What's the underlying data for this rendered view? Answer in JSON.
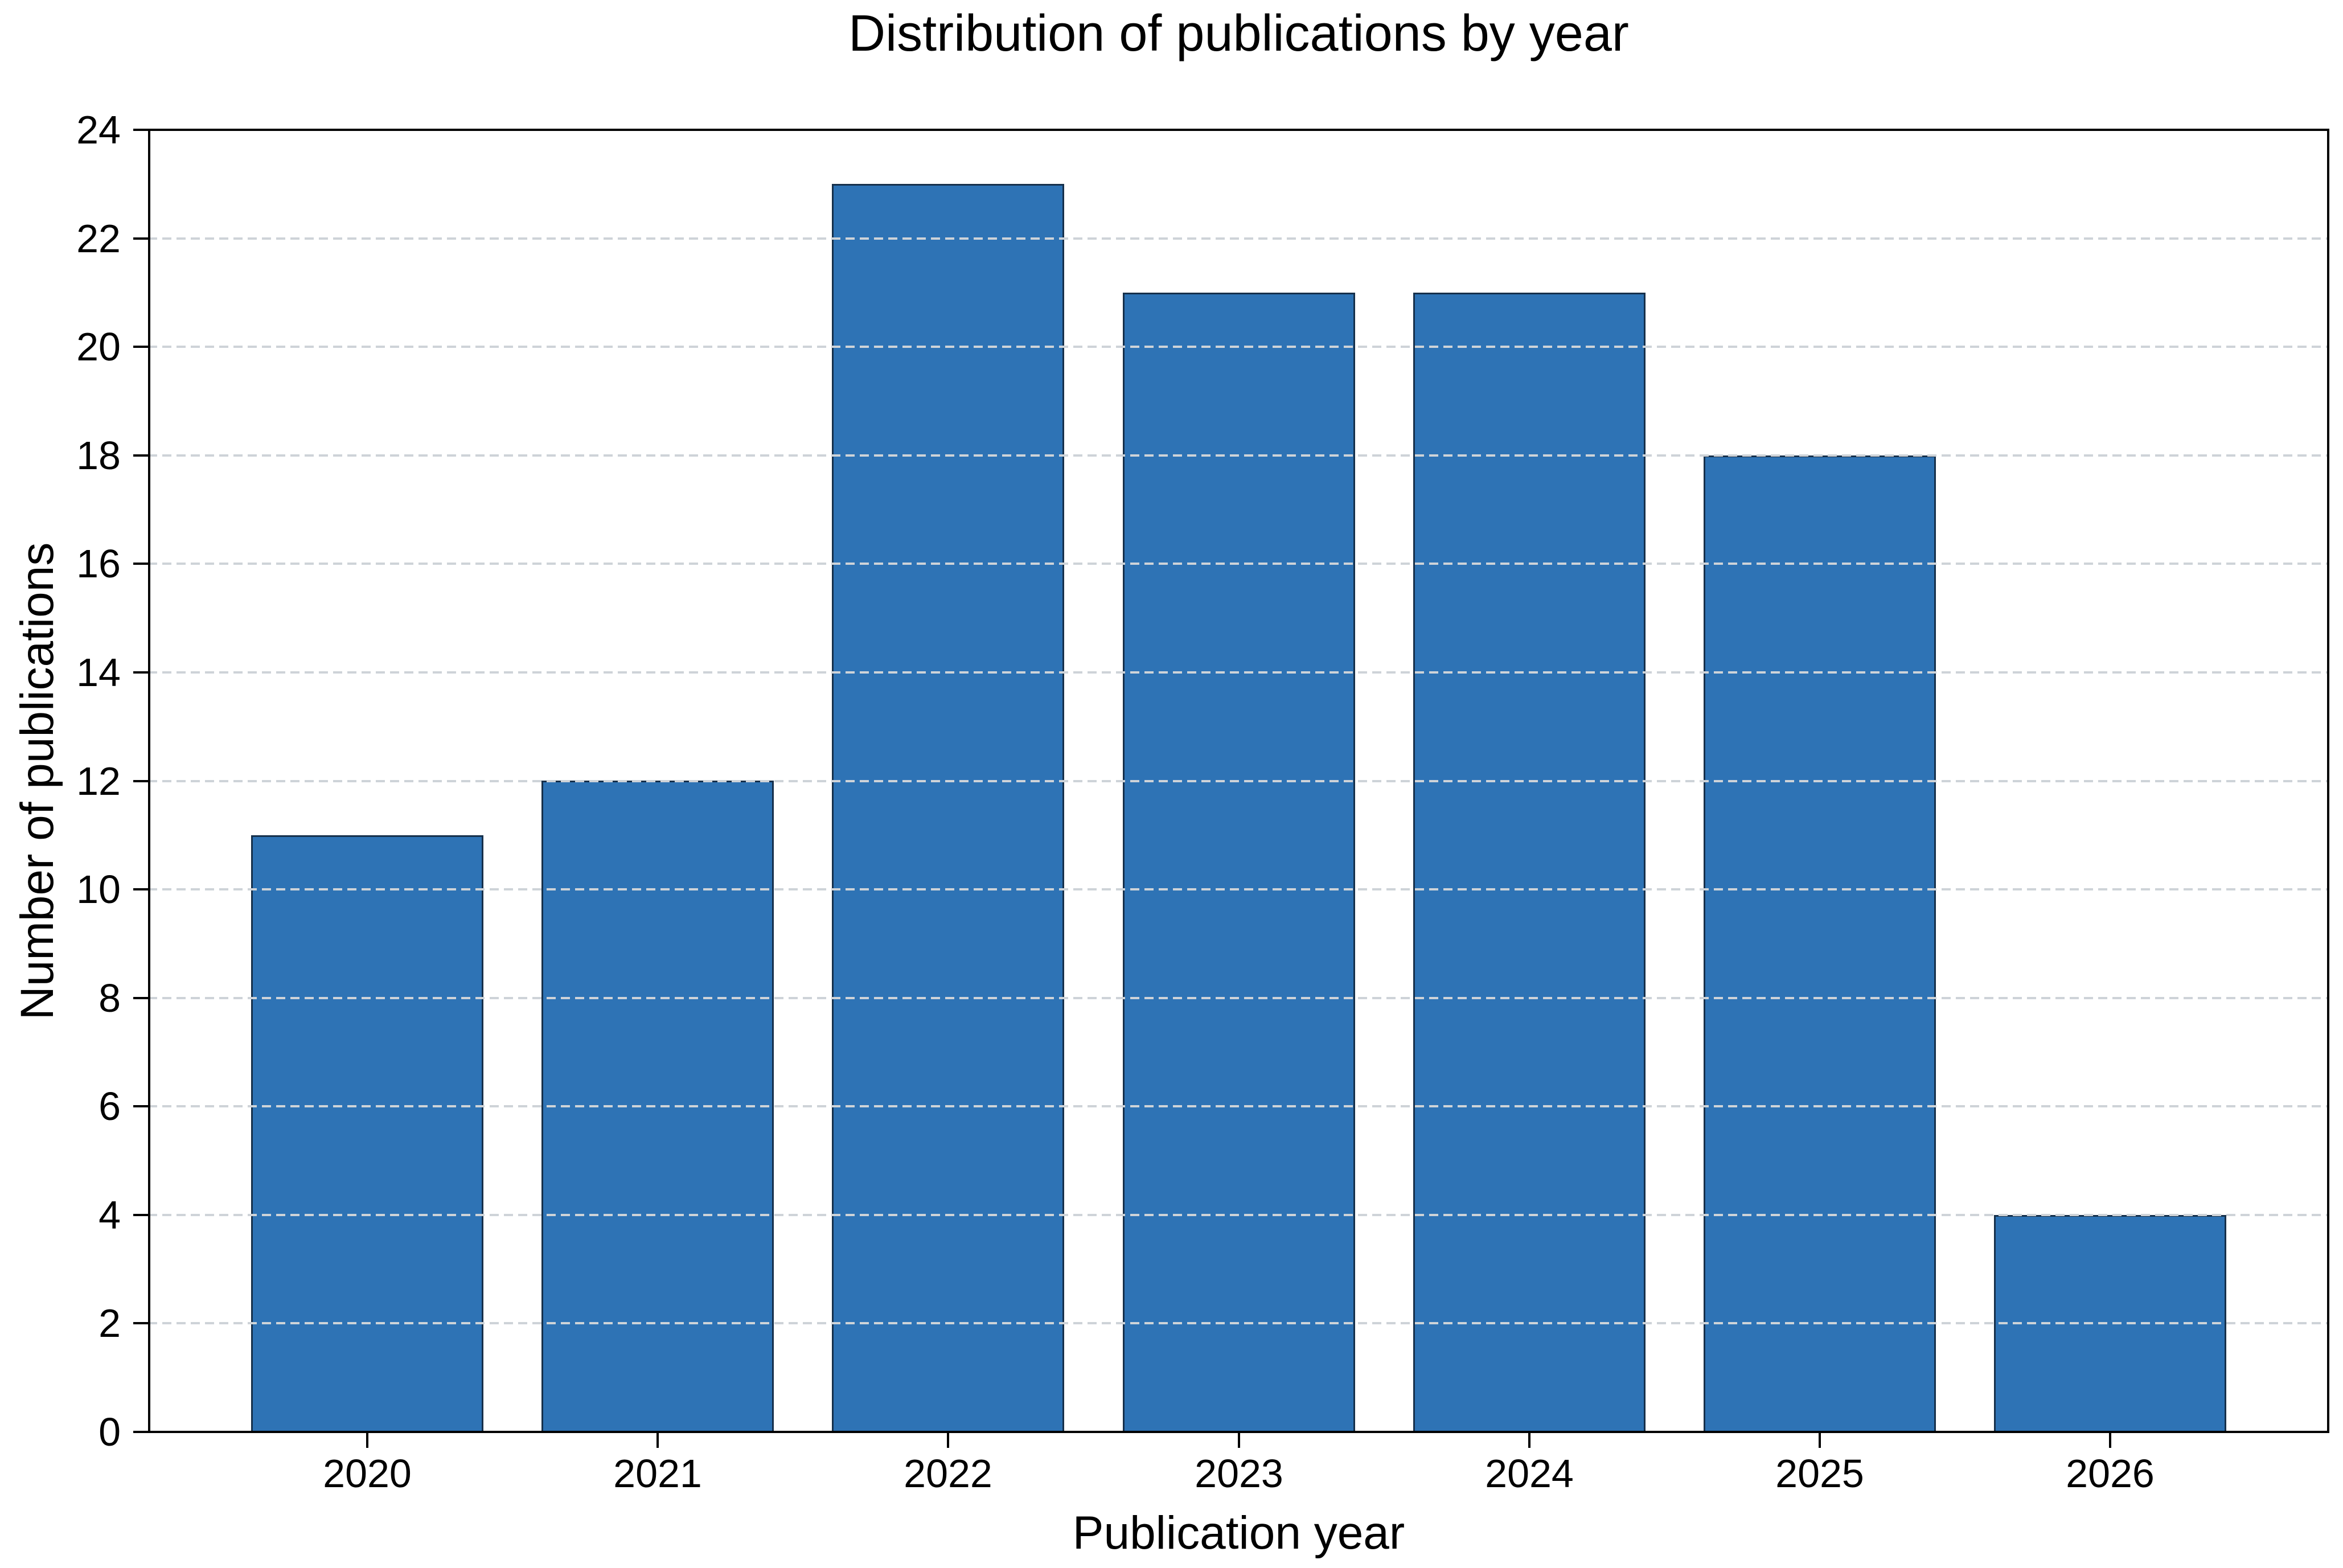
{
  "chart_data": {
    "type": "bar",
    "title": "Distribution of publications by year",
    "xlabel": "Publication year",
    "ylabel": "Number of publications",
    "categories": [
      "2020",
      "2021",
      "2022",
      "2023",
      "2024",
      "2025",
      "2026"
    ],
    "values": [
      11,
      12,
      23,
      21,
      21,
      18,
      4
    ],
    "ylim": [
      0,
      24
    ],
    "yticks": [
      0,
      2,
      4,
      6,
      8,
      10,
      12,
      14,
      16,
      18,
      20,
      22,
      24
    ],
    "grid": "horizontal dashed gridlines at major y ticks, drawn above bars",
    "legend_position": "none",
    "colors": {
      "bar_fill": "#2e73b5",
      "bar_edge": "#16304b",
      "gridline": "#ced3d8",
      "axis": "#000000",
      "text": "#000000",
      "background": "#ffffff"
    }
  }
}
